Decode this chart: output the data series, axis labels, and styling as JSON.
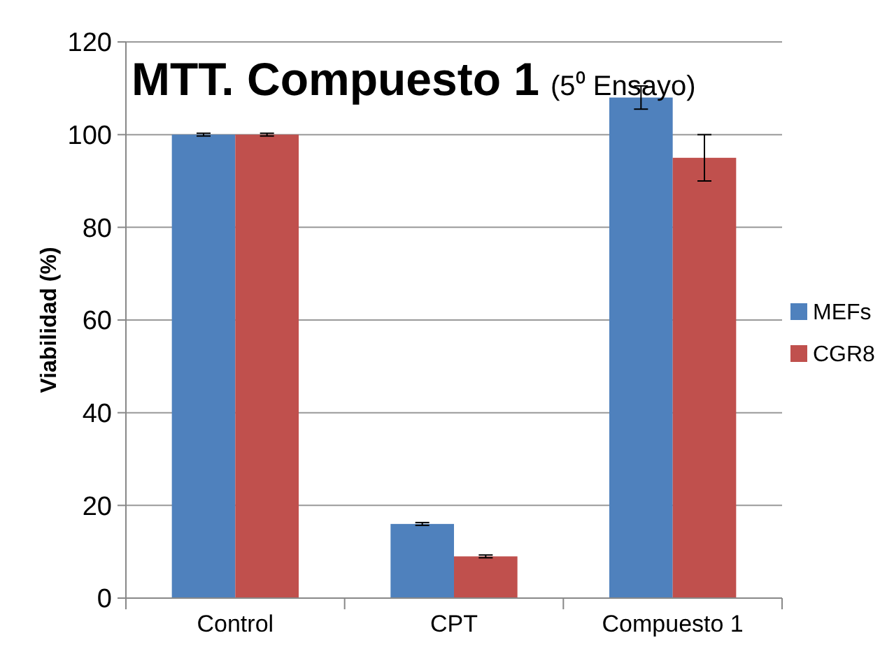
{
  "chart_data": {
    "type": "bar",
    "title": "MTT. Compuesto 1",
    "subtitle": "(5⁰ Ensayo)",
    "ylabel": "Viabilidad (%)",
    "categories": [
      "Control",
      "CPT",
      "Compuesto 1"
    ],
    "series": [
      {
        "name": "MEFs",
        "color": "#4f81bd",
        "values": [
          100,
          16,
          108
        ],
        "errors": [
          0.3,
          0.3,
          2.5
        ]
      },
      {
        "name": "CGR8",
        "color": "#c0504d",
        "values": [
          100,
          9,
          95
        ],
        "errors": [
          0.3,
          0.3,
          5
        ]
      }
    ],
    "ylim": [
      0,
      120
    ],
    "yticks": [
      0,
      20,
      40,
      60,
      80,
      100,
      120
    ],
    "grid": "y",
    "legend": "right"
  }
}
